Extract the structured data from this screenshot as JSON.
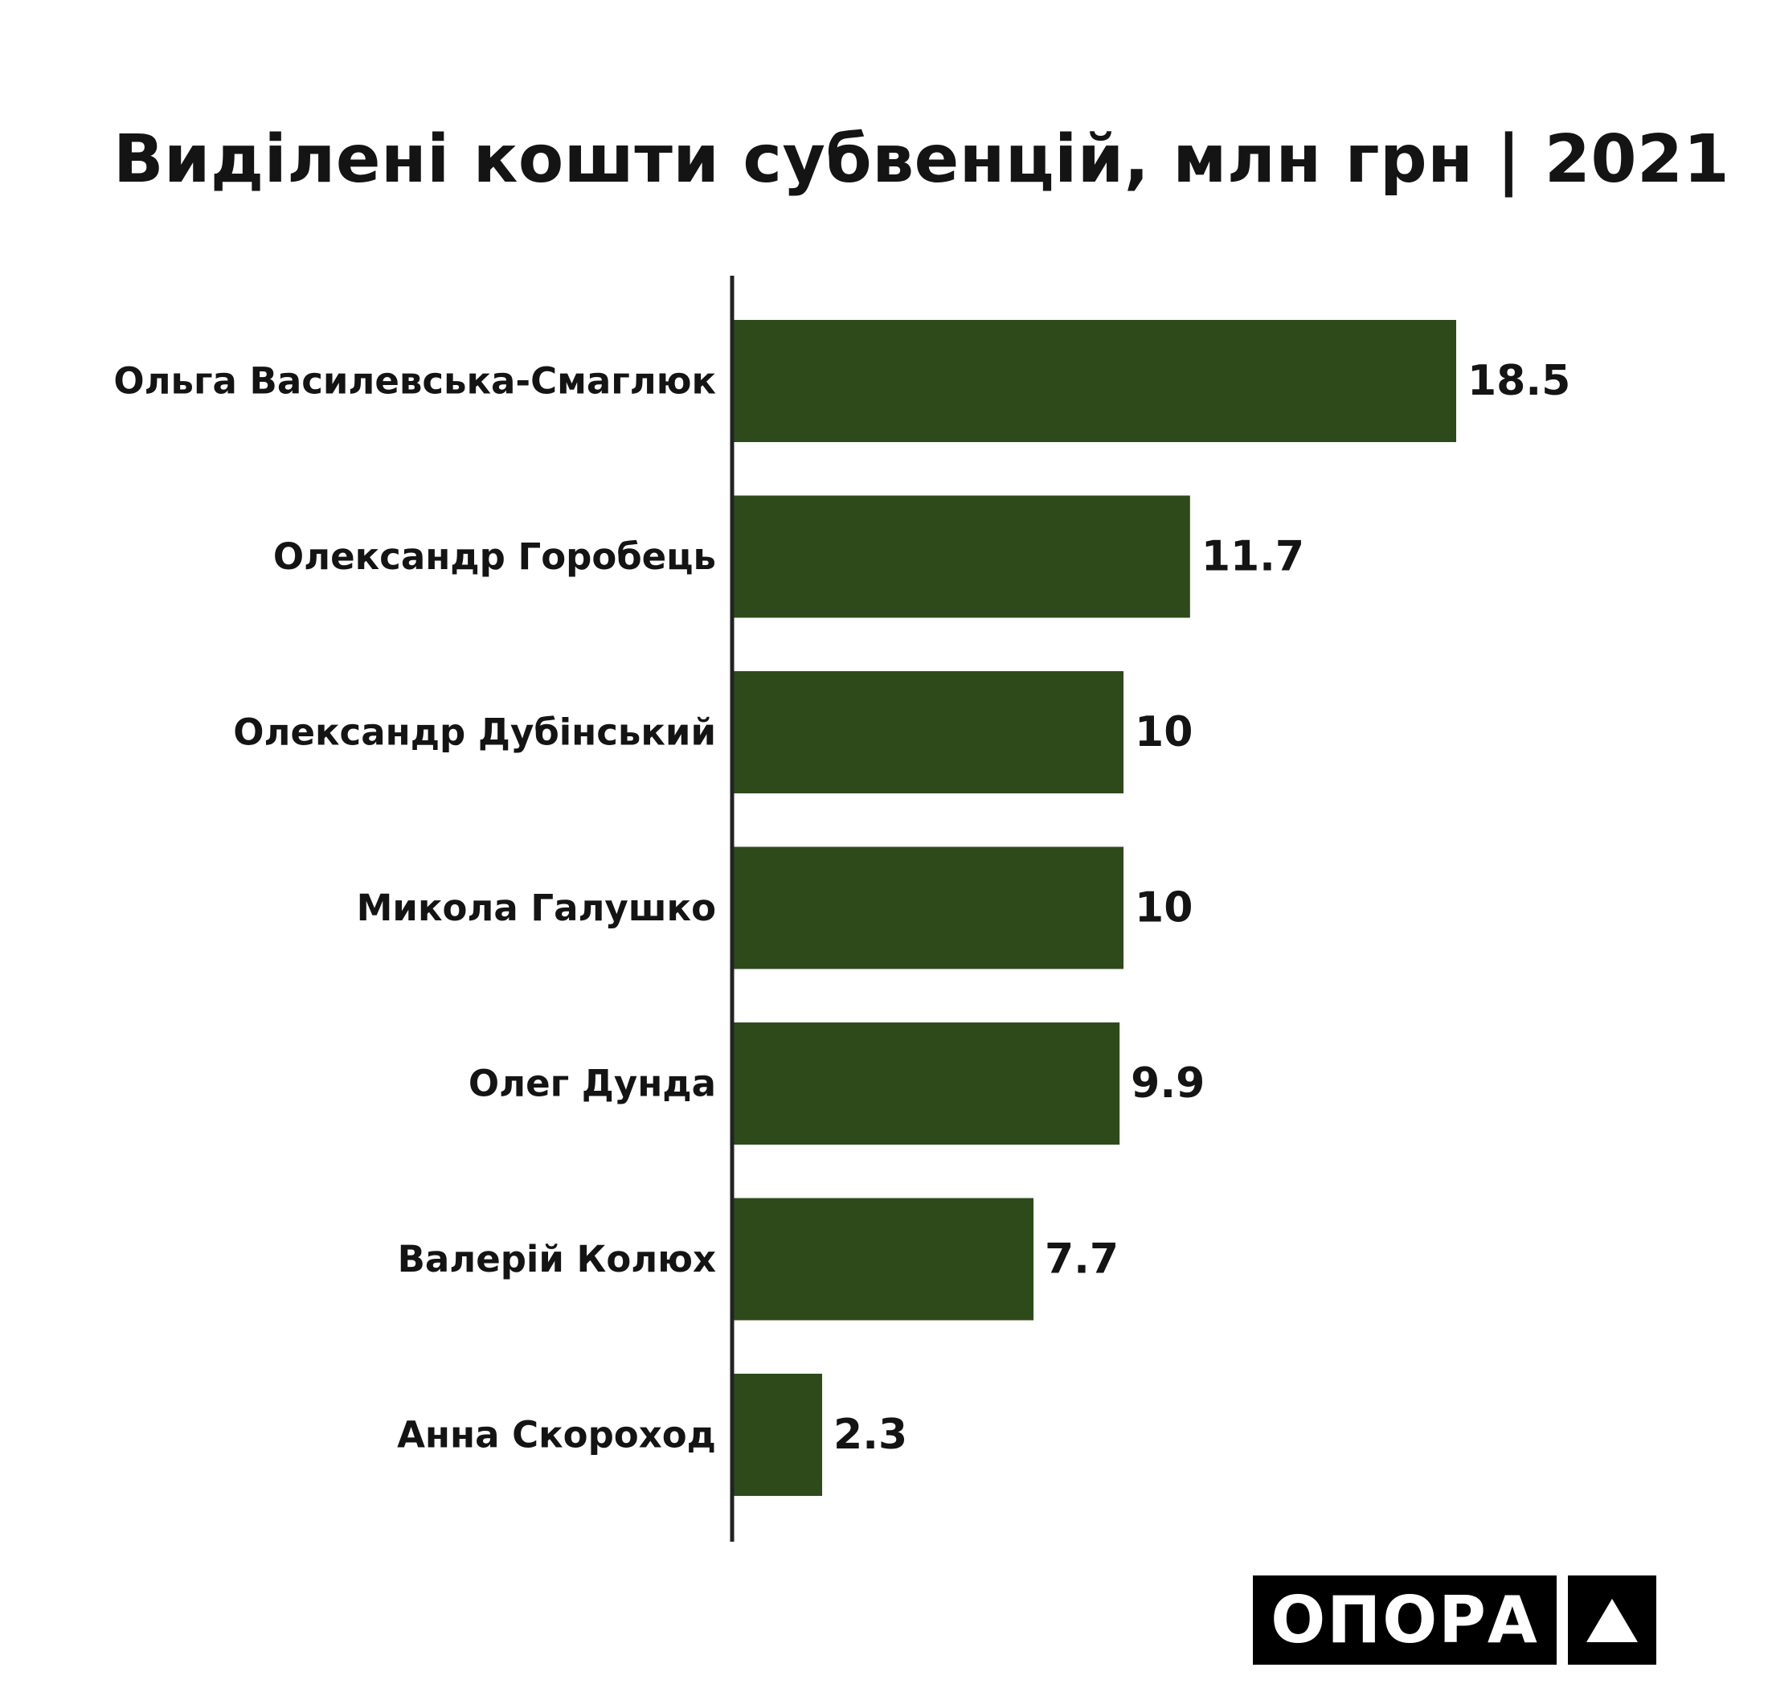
{
  "chart_data": {
    "type": "bar",
    "orientation": "horizontal",
    "title": "Виділені кошти субвенцій, млн грн | 2021",
    "categories": [
      "Ольга Василевська-Смаглюк",
      "Олександр Горобець",
      "Олександр Дубінський",
      "Микола Галушко",
      "Олег Дунда",
      "Валерій Колюх",
      "Анна Скороход"
    ],
    "values": [
      18.5,
      11.7,
      10,
      10,
      9.9,
      7.7,
      2.3
    ],
    "value_labels": [
      "18.5",
      "11.7",
      "10",
      "10",
      "9.9",
      "7.7",
      "2.3"
    ],
    "xlabel": "",
    "ylabel": "",
    "xlim": [
      0,
      18.5
    ],
    "grid": false,
    "bar_color": "#2e4a1b"
  },
  "logo": {
    "text": "ОПОРА",
    "icon": "triangle-icon"
  },
  "colors": {
    "bar": "#2e4a1b",
    "text": "#141414",
    "axis": "#222222",
    "logo_bg": "#000000",
    "logo_fg": "#ffffff"
  }
}
